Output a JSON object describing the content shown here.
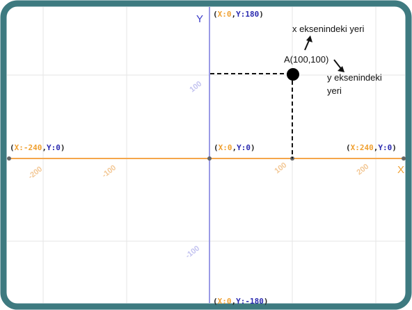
{
  "axes": {
    "x_name": "X",
    "y_name": "Y",
    "x_range": [
      -240,
      240
    ],
    "y_range": [
      -180,
      180
    ],
    "x_ticks": [
      {
        "value": -200,
        "label": "-200"
      },
      {
        "value": -100,
        "label": "-100"
      },
      {
        "value": 100,
        "label": "100"
      },
      {
        "value": 200,
        "label": "200"
      }
    ],
    "y_ticks": [
      {
        "value": 100,
        "label": "100"
      },
      {
        "value": -100,
        "label": "-100"
      }
    ],
    "colors": {
      "x_axis": "#f5a64a",
      "y_axis": "#9a9ae6",
      "frame": "#3e7a80"
    }
  },
  "coords": {
    "top": {
      "open": "(",
      "x_label": "X:",
      "x_value": "0",
      "sep": ",",
      "y_label": "Y:",
      "y_value": "180",
      "close": ")"
    },
    "bottom": {
      "open": "(",
      "x_label": "X:",
      "x_value": "0",
      "sep": ",",
      "y_label": "Y:",
      "y_value": "-180",
      "close": ")"
    },
    "left": {
      "open": "(",
      "x_label": "X:",
      "x_value": "-240",
      "sep": ",",
      "y_label": "Y:",
      "y_value": "0",
      "close": ")"
    },
    "right": {
      "open": "(",
      "x_label": "X:",
      "x_value": "240",
      "sep": ",",
      "y_label": "Y:",
      "y_value": "0",
      "close": ")"
    },
    "origin": {
      "open": "(",
      "x_label": "X:",
      "x_value": "0",
      "sep": ",",
      "y_label": "Y:",
      "y_value": "0",
      "close": ")"
    }
  },
  "point": {
    "label": "A(100,100)",
    "x": 100,
    "y": 100
  },
  "annotations": {
    "x_note": "x eksenindeki yeri",
    "y_note_line1": "y eksenindeki",
    "y_note_line2": "yeri"
  }
}
